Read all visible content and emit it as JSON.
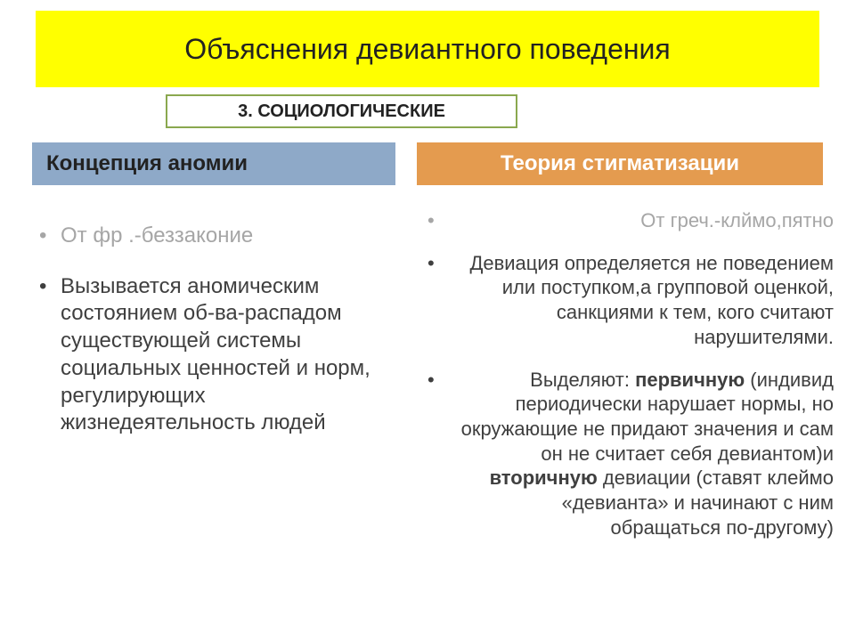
{
  "colors": {
    "title_band_bg": "#ffff00",
    "title_text": "#222222",
    "subhead_border": "#8aa84f",
    "subhead_bg": "#ffffff",
    "subhead_text": "#222222",
    "left_head_bg": "#8ea9c8",
    "left_head_text": "#222222",
    "right_head_bg": "#e49b4f",
    "right_head_text": "#ffffff",
    "body_text": "#3f3f3f",
    "dim_text": "#a6a6a6",
    "slide_bg": "#ffffff"
  },
  "title": "Объяснения девиантного поведения",
  "subhead": "3. СОЦИОЛОГИЧЕСКИЕ",
  "left": {
    "heading": "Концепция аномии",
    "items": [
      {
        "text": "От фр .-беззаконие",
        "dim": true
      },
      {
        "text": "Вызывается аномическим состоянием об-ва-распадом существующей системы социальных ценностей и норм, регулирующих жизнедеятельность людей",
        "dim": false
      }
    ]
  },
  "right": {
    "heading": "Теория стигматизации",
    "items": [
      {
        "dim": true,
        "segments": [
          {
            "t": "От греч.-клймо,пятно",
            "b": false
          }
        ]
      },
      {
        "dim": false,
        "segments": [
          {
            "t": "Девиация определяется не поведением или поступком,а групповой оценкой, санкциями к тем, кого считают нарушителями.",
            "b": false
          }
        ]
      },
      {
        "dim": false,
        "segments": [
          {
            "t": "Выделяют: ",
            "b": false
          },
          {
            "t": "первичную",
            "b": true
          },
          {
            "t": " (индивид периодически нарушает нормы, но окружающие не придают значения и сам он не считает себя девиантом)и ",
            "b": false
          },
          {
            "t": "вторичную",
            "b": true
          },
          {
            "t": " девиации (ставят клеймо «девианта» и начинают с ним обращаться по-другому)",
            "b": false
          }
        ]
      }
    ]
  },
  "layout": {
    "slide_width": 960,
    "slide_height": 720,
    "title_fontsize": 32,
    "subhead_fontsize": 20,
    "heading_fontsize": 24,
    "left_body_fontsize": 24,
    "right_body_fontsize": 22
  }
}
